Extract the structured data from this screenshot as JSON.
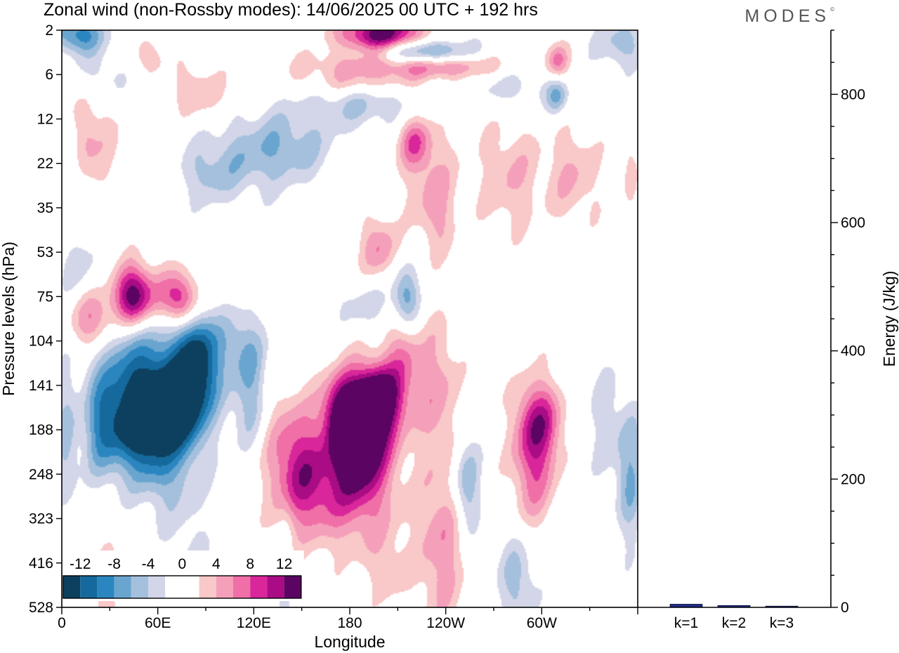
{
  "title": "Zonal wind (non-Rossby modes):  14/06/2025  00 UTC  + 192 hrs",
  "logo": "MODES",
  "colors": {
    "neg": [
      "#0d3f5e",
      "#15699c",
      "#2b86c0",
      "#6aa5cf",
      "#a5c0dc",
      "#d3d6e8"
    ],
    "neutral": "#ffffff",
    "pos": [
      "#f9c8c8",
      "#f5a0bb",
      "#ef6fa6",
      "#d9269a",
      "#a90c84",
      "#5b0462"
    ],
    "bar": "#1d2c8c"
  },
  "chart_data": [
    {
      "type": "heatmap",
      "title": "Zonal wind (non-Rossby modes):  14/06/2025  00 UTC  + 192 hrs",
      "xlabel": "Longitude",
      "ylabel": "Pressure levels (hPa)",
      "x_ticks": [
        "0",
        "60E",
        "120E",
        "180",
        "120W",
        "60W"
      ],
      "x_range": [
        0,
        360
      ],
      "y_ticks": [
        "2",
        "6",
        "12",
        "22",
        "35",
        "53",
        "75",
        "104",
        "141",
        "188",
        "248",
        "323",
        "416",
        "528"
      ],
      "colorbar_ticks": [
        "-12",
        "-8",
        "-4",
        "0",
        "4",
        "8",
        "12"
      ],
      "colorbar_levels": [
        -14,
        -12,
        -10,
        -8,
        -6,
        -4,
        -2,
        0,
        2,
        4,
        6,
        8,
        10,
        12,
        14
      ],
      "blobs": [
        {
          "lon": 50,
          "lev": 8.8,
          "value": -15,
          "sx": 14,
          "sy": 0.8
        },
        {
          "lon": 75,
          "lev": 8.5,
          "value": -9,
          "sx": 8,
          "sy": 0.6
        },
        {
          "lon": 72,
          "lev": 7.8,
          "value": -9,
          "sx": 22,
          "sy": 1.0
        },
        {
          "lon": 85,
          "lev": 7.4,
          "value": -8,
          "sx": 8,
          "sy": 0.8
        },
        {
          "lon": 25,
          "lev": 9.0,
          "value": -7,
          "sx": 8,
          "sy": 0.8
        },
        {
          "lon": 3,
          "lev": 9.3,
          "value": -5,
          "sx": 5,
          "sy": 1.0
        },
        {
          "lon": 68,
          "lev": 10.0,
          "value": -4,
          "sx": 15,
          "sy": 0.8
        },
        {
          "lon": 30,
          "lev": 7.0,
          "value": -5,
          "sx": 15,
          "sy": 0.8
        },
        {
          "lon": 20,
          "lev": 6.6,
          "value": 9,
          "sx": 10,
          "sy": 0.5
        },
        {
          "lon": 44,
          "lev": 6.0,
          "value": 10,
          "sx": 8,
          "sy": 0.5
        },
        {
          "lon": 75,
          "lev": 6.1,
          "value": 8,
          "sx": 7,
          "sy": 0.4
        },
        {
          "lon": 55,
          "lev": 6.0,
          "value": 6,
          "sx": 22,
          "sy": 0.5
        },
        {
          "lon": 12,
          "lev": 5.4,
          "value": -3,
          "sx": 12,
          "sy": 0.6
        },
        {
          "lon": 190,
          "lev": 8.8,
          "value": 14,
          "sx": 12,
          "sy": 0.8
        },
        {
          "lon": 198,
          "lev": 8.3,
          "value": 11,
          "sx": 9,
          "sy": 0.5
        },
        {
          "lon": 175,
          "lev": 8.6,
          "value": 10,
          "sx": 8,
          "sy": 0.6
        },
        {
          "lon": 183,
          "lev": 9.6,
          "value": 8,
          "sx": 12,
          "sy": 0.8
        },
        {
          "lon": 145,
          "lev": 9.6,
          "value": 7,
          "sx": 13,
          "sy": 1.0
        },
        {
          "lon": 185,
          "lev": 10.6,
          "value": 5,
          "sx": 20,
          "sy": 0.9
        },
        {
          "lon": 155,
          "lev": 10.3,
          "value": 5,
          "sx": 13,
          "sy": 0.8
        },
        {
          "lon": 235,
          "lev": 8.2,
          "value": 5,
          "sx": 10,
          "sy": 1.2
        },
        {
          "lon": 213,
          "lev": 7.5,
          "value": 6,
          "sx": 8,
          "sy": 0.9
        },
        {
          "lon": 295,
          "lev": 9.6,
          "value": 8,
          "sx": 10,
          "sy": 1.1
        },
        {
          "lon": 300,
          "lev": 8.8,
          "value": 6,
          "sx": 10,
          "sy": 0.6
        },
        {
          "lon": 253,
          "lev": 10.3,
          "value": -7,
          "sx": 6,
          "sy": 0.8
        },
        {
          "lon": 240,
          "lev": 11.2,
          "value": 4,
          "sx": 12,
          "sy": 1.0
        },
        {
          "lon": 236,
          "lev": 12.6,
          "value": 3,
          "sx": 8,
          "sy": 1.2
        },
        {
          "lon": 285,
          "lev": 12.4,
          "value": -5,
          "sx": 9,
          "sy": 0.8
        },
        {
          "lon": 355,
          "lev": 10.0,
          "value": -6,
          "sx": 6,
          "sy": 1.1
        },
        {
          "lon": 340,
          "lev": 8.8,
          "value": -3,
          "sx": 8,
          "sy": 1.0
        },
        {
          "lon": 118,
          "lev": 8.0,
          "value": -5,
          "sx": 7,
          "sy": 1.0
        },
        {
          "lon": 108,
          "lev": 7.0,
          "value": -3,
          "sx": 10,
          "sy": 0.5
        },
        {
          "lon": 215,
          "lev": 6.0,
          "value": -8,
          "sx": 6,
          "sy": 0.5
        },
        {
          "lon": 190,
          "lev": 6.2,
          "value": -3,
          "sx": 15,
          "sy": 0.4
        },
        {
          "lon": 140,
          "lev": 2.6,
          "value": -5,
          "sx": 22,
          "sy": 0.6
        },
        {
          "lon": 110,
          "lev": 3.0,
          "value": -3,
          "sx": 20,
          "sy": 0.6
        },
        {
          "lon": 90,
          "lev": 3.3,
          "value": -3,
          "sx": 12,
          "sy": 0.5
        },
        {
          "lon": 198,
          "lev": 4.9,
          "value": 6,
          "sx": 8,
          "sy": 0.5
        },
        {
          "lon": 220,
          "lev": 2.5,
          "value": 6,
          "sx": 7,
          "sy": 0.4
        },
        {
          "lon": 230,
          "lev": 3.2,
          "value": 4,
          "sx": 12,
          "sy": 0.9
        },
        {
          "lon": 280,
          "lev": 3.3,
          "value": 4,
          "sx": 14,
          "sy": 0.9
        },
        {
          "lon": 320,
          "lev": 3.3,
          "value": 4,
          "sx": 12,
          "sy": 0.8
        },
        {
          "lon": 355,
          "lev": 3.2,
          "value": 3,
          "sx": 3,
          "sy": 0.6
        },
        {
          "lon": 30,
          "lev": 2.8,
          "value": 3,
          "sx": 10,
          "sy": 0.8
        },
        {
          "lon": 14,
          "lev": 2.2,
          "value": 4,
          "sx": 5,
          "sy": 0.7
        },
        {
          "lon": 200,
          "lev": 0.1,
          "value": 14,
          "sx": 18,
          "sy": 0.3
        },
        {
          "lon": 225,
          "lev": 0.5,
          "value": -10,
          "sx": 22,
          "sy": 0.2
        },
        {
          "lon": 240,
          "lev": 0.8,
          "value": 6,
          "sx": 25,
          "sy": 0.2
        },
        {
          "lon": 190,
          "lev": 0.8,
          "value": 4,
          "sx": 35,
          "sy": 0.25
        },
        {
          "lon": 10,
          "lev": 0.1,
          "value": -9,
          "sx": 12,
          "sy": 0.3
        },
        {
          "lon": 350,
          "lev": 0.3,
          "value": -5,
          "sx": 12,
          "sy": 0.4
        },
        {
          "lon": 85,
          "lev": 1.4,
          "value": 4,
          "sx": 12,
          "sy": 0.4
        },
        {
          "lon": 55,
          "lev": 0.6,
          "value": 3,
          "sx": 10,
          "sy": 0.3
        },
        {
          "lon": 310,
          "lev": 0.7,
          "value": 7,
          "sx": 5,
          "sy": 0.3
        },
        {
          "lon": 310,
          "lev": 1.5,
          "value": -6,
          "sx": 5,
          "sy": 0.3
        },
        {
          "lon": 280,
          "lev": 1.3,
          "value": -3,
          "sx": 20,
          "sy": 0.3
        },
        {
          "lon": 190,
          "lev": 1.7,
          "value": -4,
          "sx": 25,
          "sy": 0.35
        },
        {
          "lon": 185,
          "lev": 1.2,
          "value": 3,
          "sx": 25,
          "sy": 0.2
        },
        {
          "lon": 25,
          "lev": 1.0,
          "value": -3,
          "sx": 12,
          "sy": 0.4
        },
        {
          "lon": 235,
          "lev": 4.3,
          "value": 3,
          "sx": 8,
          "sy": 0.6
        },
        {
          "lon": 205,
          "lev": 12.2,
          "value": 2.8,
          "sx": 10,
          "sy": 0.6
        },
        {
          "lon": 140,
          "lev": 12.5,
          "value": -2.8,
          "sx": 3,
          "sy": 1.2
        },
        {
          "lon": 28,
          "lev": 12.6,
          "value": 2.8,
          "sx": 8,
          "sy": 0.8
        },
        {
          "lon": 80,
          "lev": 12.0,
          "value": -2.5,
          "sx": 10,
          "sy": 0.8
        }
      ]
    },
    {
      "type": "bar",
      "ylabel": "Energy (J/kg)",
      "categories": [
        "k=1",
        "k=2",
        "k=3"
      ],
      "values": [
        5,
        3,
        2
      ],
      "ylim": [
        0,
        900
      ],
      "y_ticks": [
        "0",
        "200",
        "400",
        "600",
        "800"
      ]
    }
  ]
}
